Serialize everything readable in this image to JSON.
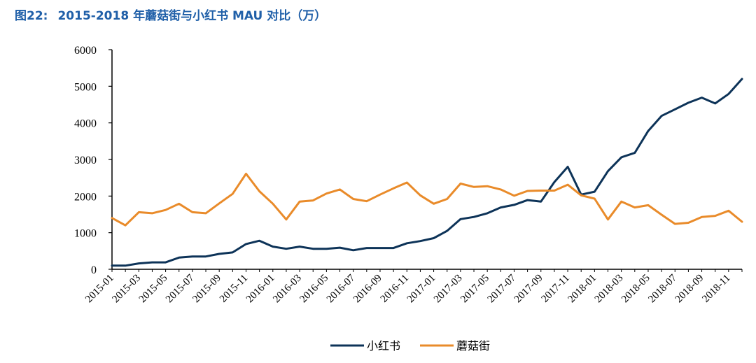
{
  "figure": {
    "label": "图22:",
    "title": "2015-2018 年蘑菇街与小红书 MAU 对比（万）"
  },
  "colors": {
    "xiaohongshu": "#0d3358",
    "mogujie": "#e98b2a",
    "axis": "#000000"
  },
  "chart_data": {
    "type": "line",
    "title": "2015-2018 年蘑菇街与小红书 MAU 对比（万）",
    "xlabel": "",
    "ylabel": "",
    "ylim": [
      0,
      6000
    ],
    "yticks": [
      "0",
      "1000",
      "2000",
      "3000",
      "4000",
      "5000",
      "6000"
    ],
    "x": [
      "2015-01",
      "2015-02",
      "2015-03",
      "2015-04",
      "2015-05",
      "2015-06",
      "2015-07",
      "2015-08",
      "2015-09",
      "2015-10",
      "2015-11",
      "2015-12",
      "2016-01",
      "2016-02",
      "2016-03",
      "2016-04",
      "2016-05",
      "2016-06",
      "2016-07",
      "2016-08",
      "2016-09",
      "2016-10",
      "2016-11",
      "2016-12",
      "2017-01",
      "2017-02",
      "2017-03",
      "2017-04",
      "2017-05",
      "2017-06",
      "2017-07",
      "2017-08",
      "2017-09",
      "2017-10",
      "2017-11",
      "2017-12",
      "2018-01",
      "2018-02",
      "2018-03",
      "2018-04",
      "2018-05",
      "2018-06",
      "2018-07",
      "2018-08",
      "2018-09",
      "2018-10",
      "2018-11",
      "2018-12"
    ],
    "xtick_labels": [
      "2015-01",
      "2015-03",
      "2015-05",
      "2015-07",
      "2015-09",
      "2015-11",
      "2016-01",
      "2016-03",
      "2016-05",
      "2016-07",
      "2016-09",
      "2016-11",
      "2017-01",
      "2017-03",
      "2017-05",
      "2017-07",
      "2017-09",
      "2017-11",
      "2018-01",
      "2018-03",
      "2018-05",
      "2018-07",
      "2018-09",
      "2018-11"
    ],
    "series": [
      {
        "name": "小红书",
        "key": "xiaohongshu",
        "values": [
          100,
          100,
          160,
          190,
          190,
          320,
          350,
          350,
          420,
          460,
          690,
          780,
          620,
          560,
          620,
          560,
          560,
          590,
          520,
          580,
          580,
          580,
          710,
          770,
          850,
          1050,
          1370,
          1430,
          1530,
          1690,
          1760,
          1890,
          1850,
          2380,
          2800,
          2040,
          2120,
          2680,
          3060,
          3180,
          3780,
          4190,
          4370,
          4550,
          4690,
          4530,
          4790,
          5200
        ]
      },
      {
        "name": "蘑菇街",
        "key": "mogujie",
        "values": [
          1400,
          1200,
          1560,
          1530,
          1620,
          1790,
          1560,
          1530,
          1800,
          2060,
          2610,
          2130,
          1790,
          1360,
          1850,
          1880,
          2070,
          2180,
          1920,
          1860,
          2040,
          2210,
          2370,
          2020,
          1790,
          1920,
          2340,
          2250,
          2270,
          2180,
          2010,
          2140,
          2150,
          2150,
          2310,
          2020,
          1930,
          1360,
          1850,
          1690,
          1750,
          1490,
          1240,
          1270,
          1430,
          1460,
          1600,
          1300
        ]
      }
    ],
    "legend": [
      "小红书",
      "蘑菇街"
    ],
    "legend_position": "bottom-center",
    "grid": false
  }
}
